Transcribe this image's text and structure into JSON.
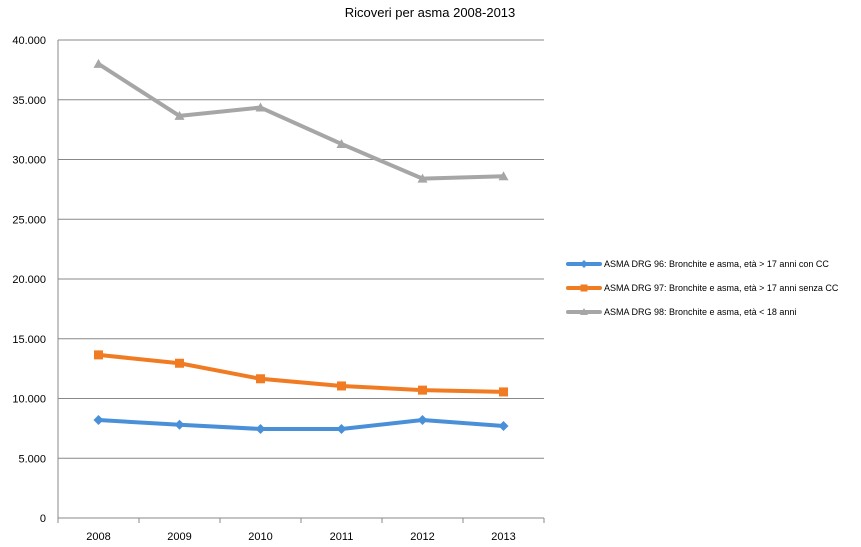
{
  "chart_data": {
    "type": "line",
    "title": "Ricoveri per asma 2008-2013",
    "xlabel": "",
    "ylabel": "",
    "categories": [
      "2008",
      "2009",
      "2010",
      "2011",
      "2012",
      "2013"
    ],
    "ylim": [
      0,
      40000
    ],
    "yticks": [
      0,
      5000,
      10000,
      15000,
      20000,
      25000,
      30000,
      35000,
      40000
    ],
    "ytick_labels": [
      "0",
      "5.000",
      "10.000",
      "15.000",
      "20.000",
      "25.000",
      "30.000",
      "35.000",
      "40.000"
    ],
    "grid": true,
    "legend_position": "right",
    "series": [
      {
        "name": "ASMA DRG 96: Bronchite e asma, età > 17 anni con CC",
        "color": "#4a90d9",
        "marker": "diamond",
        "values": [
          8200,
          7800,
          7450,
          7450,
          8200,
          7700
        ]
      },
      {
        "name": "ASMA DRG 97: Bronchite e asma, età > 17 anni senza CC",
        "color": "#f07b22",
        "marker": "square",
        "values": [
          13650,
          12950,
          11650,
          11050,
          10700,
          10550
        ]
      },
      {
        "name": "ASMA DRG 98: Bronchite e asma, età < 18 anni",
        "color": "#a6a6a6",
        "marker": "triangle",
        "values": [
          38000,
          33650,
          34350,
          31300,
          28400,
          28600
        ]
      }
    ]
  }
}
